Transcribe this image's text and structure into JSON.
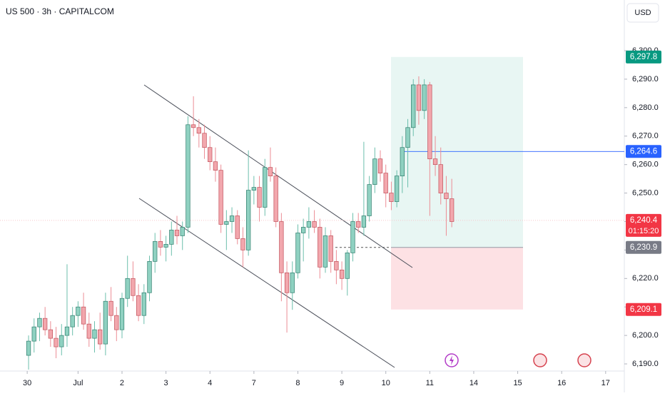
{
  "chart_data": {
    "type": "candlestick",
    "title": "US 500 · 3h · CAPITALCOM",
    "currency": "USD",
    "open": [
      6193,
      6198,
      6203,
      6206,
      6202,
      6199,
      6196,
      6200,
      6203,
      6207,
      6210,
      6204,
      6199,
      6202,
      6197,
      6212,
      6207,
      6202,
      6213,
      6220,
      6214,
      6207,
      6215,
      6226,
      6233,
      6231,
      6232,
      6237,
      6235,
      6238,
      6274,
      6273,
      6271,
      6266,
      6261,
      6258,
      6239,
      6240,
      6242,
      6234,
      6230,
      6251,
      6252,
      6245,
      6259,
      6256,
      6240,
      6222,
      6215,
      6222,
      6236,
      6238,
      6240,
      6238,
      6224,
      6235,
      6226,
      6223,
      6220,
      6229,
      6240,
      6238,
      6242,
      6253,
      6262,
      6257,
      6250,
      6247,
      6256,
      6266,
      6273,
      6288,
      6279,
      6288,
      6262,
      6260,
      6250,
      6248
    ],
    "high": [
      6200,
      6206,
      6208,
      6210,
      6205,
      6203,
      6204,
      6225,
      6210,
      6212,
      6215,
      6208,
      6205,
      6208,
      6215,
      6217,
      6210,
      6215,
      6228,
      6226,
      6218,
      6218,
      6228,
      6236,
      6237,
      6235,
      6240,
      6242,
      6240,
      6277,
      6284,
      6276,
      6274,
      6270,
      6266,
      6260,
      6244,
      6245,
      6244,
      6238,
      6265,
      6256,
      6256,
      6262,
      6266,
      6259,
      6243,
      6226,
      6226,
      6239,
      6241,
      6245,
      6244,
      6241,
      6238,
      6237,
      6230,
      6226,
      6230,
      6243,
      6243,
      6268,
      6256,
      6266,
      6265,
      6260,
      6254,
      6258,
      6270,
      6276,
      6290,
      6291,
      6290,
      6289,
      6270,
      6266,
      6256,
      6255
    ],
    "low": [
      6188,
      6194,
      6198,
      6200,
      6196,
      6192,
      6193,
      6196,
      6200,
      6203,
      6202,
      6196,
      6194,
      6195,
      6193,
      6205,
      6198,
      6199,
      6210,
      6212,
      6205,
      6204,
      6212,
      6222,
      6228,
      6226,
      6228,
      6232,
      6230,
      6236,
      6270,
      6266,
      6262,
      6258,
      6254,
      6236,
      6230,
      6236,
      6232,
      6224,
      6228,
      6246,
      6240,
      6242,
      6254,
      6238,
      6212,
      6201,
      6209,
      6220,
      6226,
      6234,
      6236,
      6220,
      6222,
      6222,
      6218,
      6216,
      6214,
      6226,
      6236,
      6235,
      6240,
      6250,
      6254,
      6245,
      6244,
      6245,
      6250,
      6252,
      6270,
      6274,
      6276,
      6242,
      6256,
      6246,
      6235,
      6238
    ],
    "close": [
      6198,
      6203,
      6206,
      6202,
      6199,
      6196,
      6200,
      6203,
      6207,
      6210,
      6204,
      6199,
      6202,
      6197,
      6212,
      6207,
      6202,
      6213,
      6220,
      6214,
      6207,
      6215,
      6226,
      6233,
      6231,
      6232,
      6237,
      6235,
      6238,
      6274,
      6273,
      6271,
      6266,
      6261,
      6258,
      6239,
      6240,
      6242,
      6234,
      6230,
      6251,
      6252,
      6245,
      6259,
      6256,
      6240,
      6222,
      6215,
      6222,
      6236,
      6238,
      6240,
      6238,
      6224,
      6235,
      6226,
      6223,
      6220,
      6229,
      6240,
      6238,
      6242,
      6253,
      6262,
      6257,
      6250,
      6247,
      6256,
      6266,
      6273,
      6288,
      6279,
      6288,
      6262,
      6260,
      6250,
      6248,
      6240
    ],
    "up_color": "#8fd1c1",
    "up_border": "#2f7d6c",
    "down_color": "#f2a7ad",
    "down_border": "#c14f59",
    "xlim": [
      -5.2,
      108.4
    ],
    "ylim": [
      6187.5,
      6317.8
    ],
    "xticks": [
      {
        "value": -0.25,
        "label": "30"
      },
      {
        "value": 9,
        "label": "Jul"
      },
      {
        "value": 17,
        "label": "2"
      },
      {
        "value": 25,
        "label": "3"
      },
      {
        "value": 33,
        "label": "4"
      },
      {
        "value": 41,
        "label": "7"
      },
      {
        "value": 49,
        "label": "8"
      },
      {
        "value": 57,
        "label": "9"
      },
      {
        "value": 65,
        "label": "10"
      },
      {
        "value": 73,
        "label": "11"
      },
      {
        "value": 81,
        "label": "14"
      },
      {
        "value": 89,
        "label": "15"
      },
      {
        "value": 97,
        "label": "16"
      },
      {
        "value": 105,
        "label": "17"
      }
    ],
    "yticks": [
      {
        "value": 6190,
        "label": "6,190.0"
      },
      {
        "value": 6200,
        "label": "6,200.0"
      },
      {
        "value": 6210,
        "label": "6,210.0"
      },
      {
        "value": 6220,
        "label": "6,220.0"
      },
      {
        "value": 6230,
        "label": "6,230.0"
      },
      {
        "value": 6240,
        "label": "6,240.0"
      },
      {
        "value": 6250,
        "label": "6,250.0"
      },
      {
        "value": 6260,
        "label": "6,260.0"
      },
      {
        "value": 6270,
        "label": "6,270.0"
      },
      {
        "value": 6280,
        "label": "6,280.0"
      },
      {
        "value": 6290,
        "label": "6,290.0"
      },
      {
        "value": 6300,
        "label": "6,300.0"
      }
    ],
    "target": {
      "value": 6297.8,
      "label": "6,297.8",
      "color": "#089981"
    },
    "alert": {
      "value": 6264.6,
      "label": "6,264.6",
      "color": "#2962ff"
    },
    "last": {
      "value": 6240.4,
      "label": "6,240.4",
      "countdown": "01:15:20",
      "color": "#f23645"
    },
    "entry": {
      "value": 6230.9,
      "label": "6,230.9",
      "color": "#787b86"
    },
    "stop": {
      "value": 6209.1,
      "label": "6,209.1",
      "color": "#f23645"
    }
  }
}
